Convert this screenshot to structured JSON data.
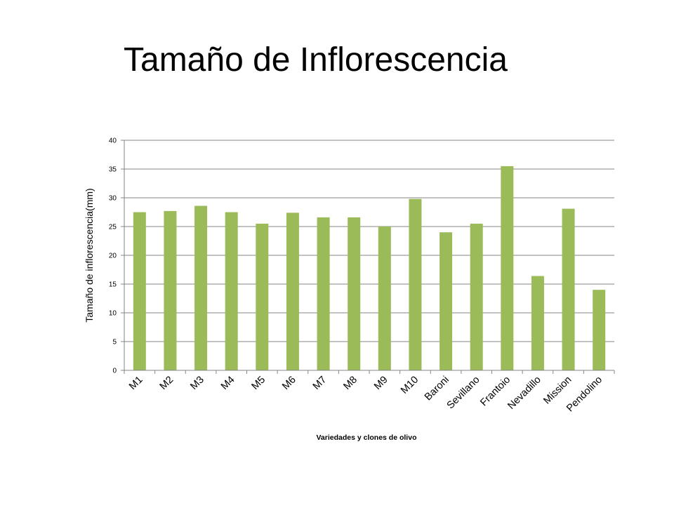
{
  "slide": {
    "title": "Tamaño de Inflorescencia"
  },
  "chart_data": {
    "type": "bar",
    "categories": [
      "M1",
      "M2",
      "M3",
      "M4",
      "M5",
      "M6",
      "M7",
      "M8",
      "M9",
      "M10",
      "Baroni",
      "Sevillano",
      "Frantoio",
      "Nevadillo",
      "Mission",
      "Pendolino"
    ],
    "values": [
      27.5,
      27.7,
      28.6,
      27.5,
      25.5,
      27.4,
      26.6,
      26.6,
      25.0,
      29.8,
      24.0,
      25.5,
      35.5,
      16.4,
      28.1,
      14.0
    ],
    "xlabel": "Variedades y clones de olivo",
    "ylabel": "Tamaño de inflorescencia(mm)",
    "ylim": [
      0,
      40
    ],
    "yticks": [
      0,
      5,
      10,
      15,
      20,
      25,
      30,
      35,
      40
    ],
    "grid": true,
    "legend": "none",
    "bar_color": "#9BBB59",
    "gridline_color": "#868686"
  }
}
